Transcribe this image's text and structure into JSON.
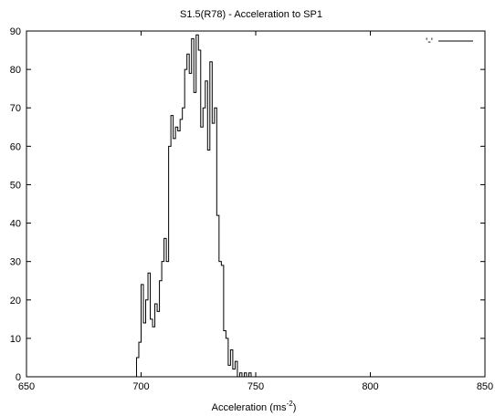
{
  "chart_data": {
    "type": "step",
    "title": "S1.5(R78) - Acceleration to SP1",
    "xlabel": "Acceleration (ms",
    "xlabel_sup": "-2",
    "xlabel_close": ")",
    "ylabel": "",
    "xlim": [
      650,
      850
    ],
    "ylim": [
      0,
      90
    ],
    "x_ticks": [
      650,
      700,
      750,
      800,
      850
    ],
    "y_ticks": [
      0,
      10,
      20,
      30,
      40,
      50,
      60,
      70,
      80,
      90
    ],
    "legend": {
      "label": "'-'",
      "position": "top-right"
    },
    "grid": false,
    "series": [
      {
        "x": [
          697,
          698,
          699,
          700,
          701,
          702,
          703,
          704,
          705,
          706,
          707,
          708,
          709,
          710,
          711,
          712,
          713,
          714,
          715,
          716,
          717,
          718,
          719,
          720,
          721,
          722,
          723,
          724,
          725,
          726,
          727,
          728,
          729,
          730,
          731,
          732,
          733,
          734,
          735,
          736,
          737,
          738,
          739,
          740,
          741,
          742,
          743,
          744,
          745,
          746,
          747,
          748
        ],
        "values": [
          0,
          5,
          9,
          24,
          14,
          20,
          27,
          15,
          13,
          19,
          17,
          25,
          30,
          36,
          30,
          60,
          68,
          62,
          65,
          64,
          67,
          70,
          80,
          84,
          79,
          88,
          74,
          89,
          85,
          65,
          70,
          77,
          59,
          82,
          66,
          70,
          42,
          30,
          29,
          12,
          10,
          3,
          7,
          2,
          4,
          0,
          1,
          0,
          1,
          0,
          1,
          0
        ],
        "color": "#000000"
      }
    ]
  }
}
